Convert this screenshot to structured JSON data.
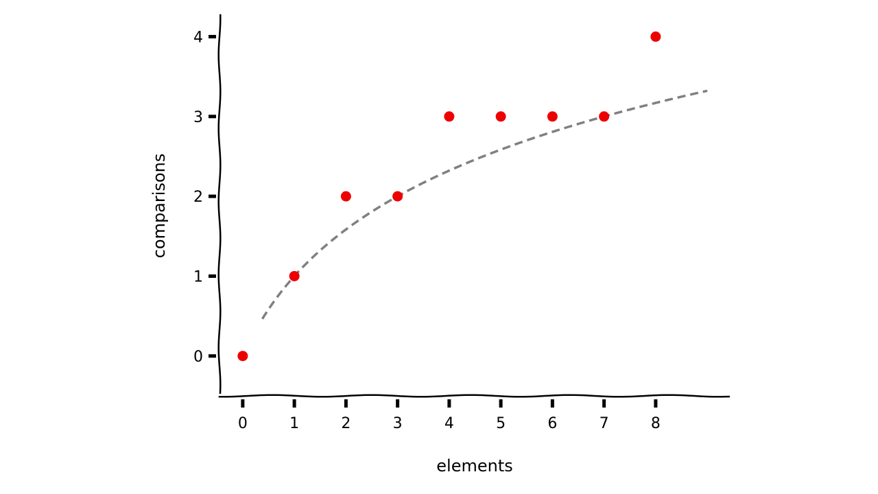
{
  "chart_data": {
    "type": "scatter",
    "title": "",
    "xlabel": "elements",
    "ylabel": "comparisons",
    "x_ticks": [
      0,
      1,
      2,
      3,
      4,
      5,
      6,
      7,
      8
    ],
    "y_ticks": [
      0,
      1,
      2,
      3,
      4
    ],
    "xlim": [
      -0.45,
      9.45
    ],
    "ylim": [
      -0.5,
      4.27
    ],
    "grid": false,
    "series": [
      {
        "x": [
          0,
          1,
          2,
          3,
          4,
          5,
          6,
          7,
          8
        ],
        "y": [
          0,
          1,
          2,
          2,
          3,
          3,
          3,
          3,
          4
        ],
        "color": "#ee0000"
      }
    ],
    "trend_line": {
      "function": "log2(x + 1)",
      "x_range": [
        0.38,
        9.0
      ],
      "color": "#808080",
      "style": "dashed"
    }
  }
}
